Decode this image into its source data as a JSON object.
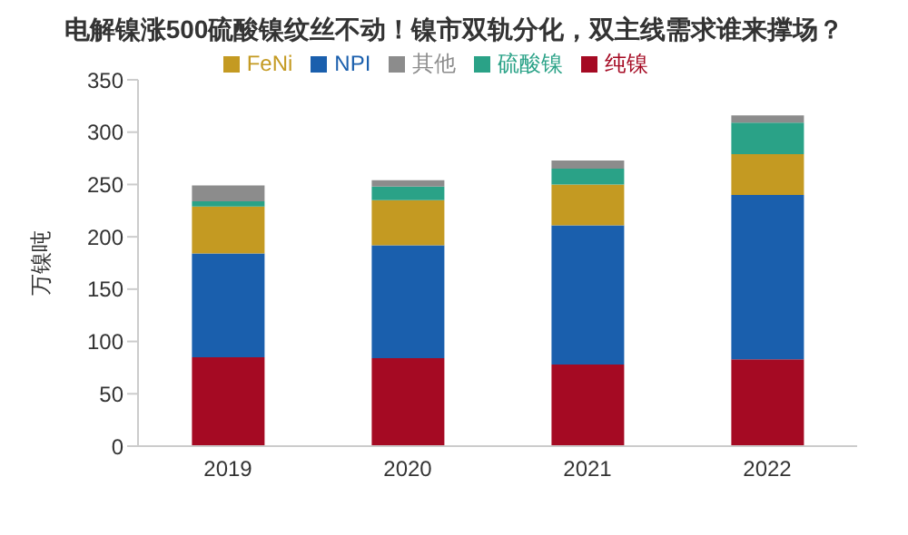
{
  "chart_data": {
    "type": "bar",
    "title": "电解镍涨500硫酸镍纹丝不动！镍市双轨分化，双主线需求谁来撑场？",
    "ylabel": "万镍吨",
    "categories": [
      "2019",
      "2020",
      "2021",
      "2022"
    ],
    "stacked": true,
    "series": [
      {
        "name": "纯镍",
        "color": "#a50a23",
        "values": [
          85,
          84,
          78,
          83
        ]
      },
      {
        "name": "NPI",
        "color": "#1a5fad",
        "values": [
          99,
          108,
          133,
          157
        ]
      },
      {
        "name": "FeNi",
        "color": "#c49a22",
        "values": [
          45,
          43,
          39,
          39
        ]
      },
      {
        "name": "硫酸镍",
        "color": "#2aa287",
        "values": [
          5,
          13,
          15,
          30
        ]
      },
      {
        "name": "其他",
        "color": "#8c8c8c",
        "values": [
          15,
          6,
          8,
          7
        ]
      }
    ],
    "ylim": [
      0,
      350
    ],
    "yticks": [
      0,
      50,
      100,
      150,
      200,
      250,
      300,
      350
    ],
    "grid": false,
    "legend": "top"
  }
}
